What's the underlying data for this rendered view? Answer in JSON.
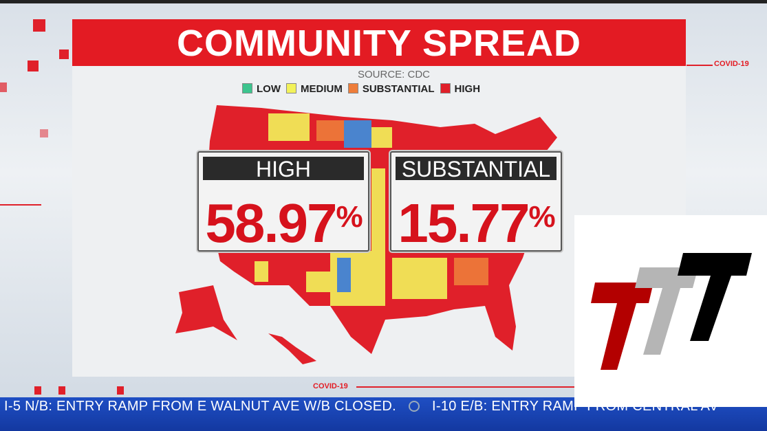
{
  "title": "COMMUNITY SPREAD",
  "source": "SOURCE: CDC",
  "legend": [
    {
      "label": "LOW",
      "color": "#3cc48e"
    },
    {
      "label": "MEDIUM",
      "color": "#f2f25a"
    },
    {
      "label": "SUBSTANTIAL",
      "color": "#ee7d3a"
    },
    {
      "label": "HIGH",
      "color": "#e0202a"
    }
  ],
  "stats": [
    {
      "label": "HIGH",
      "value": "58.97",
      "unit": "%"
    },
    {
      "label": "SUBSTANTIAL",
      "value": "15.77",
      "unit": "%"
    }
  ],
  "covid_tag_top": "COVID-19",
  "covid_tag_bottom": "COVID-19",
  "ticker": {
    "item1": "I-5 N/B: ENTRY RAMP FROM E WALNUT AVE W/B CLOSED.",
    "item2": "I-10 E/B: ENTRY RAMP FROM CENTRAL AV"
  },
  "logo_text": "TTT"
}
